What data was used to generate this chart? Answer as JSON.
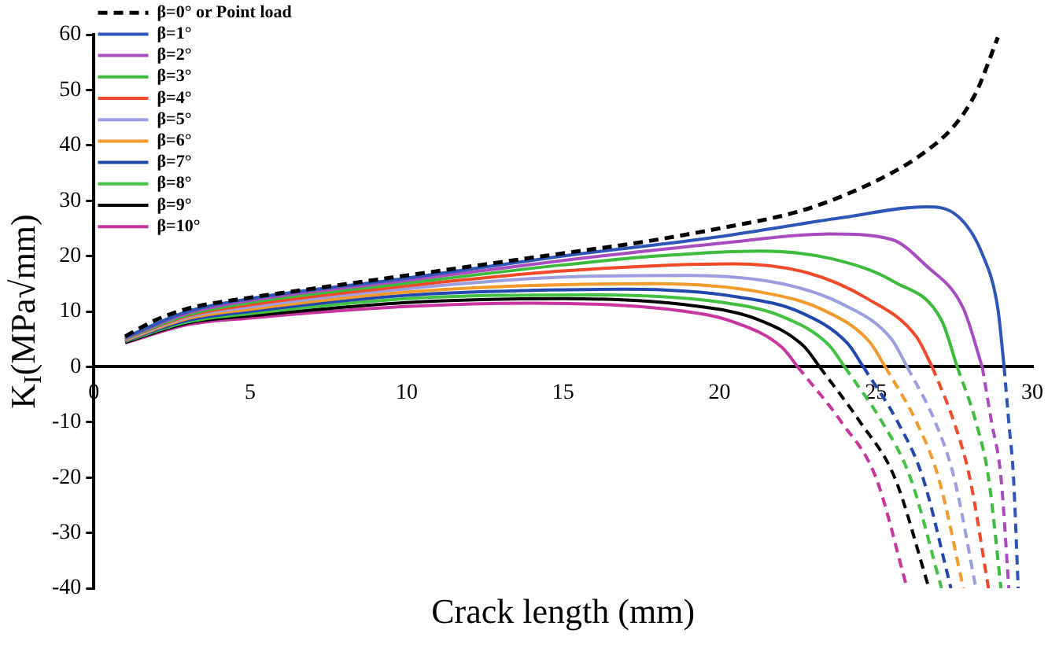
{
  "chart_data": {
    "type": "line",
    "xlabel": "Crack length (mm)",
    "ylabel": "K$_{I}$(MPa√mm)",
    "xlim": [
      0,
      30
    ],
    "xticks": [
      0,
      5,
      10,
      15,
      20,
      25,
      30
    ],
    "ylim": [
      -40,
      60
    ],
    "yticks": [
      -40,
      -30,
      -20,
      -10,
      0,
      10,
      20,
      30,
      40,
      50,
      60
    ],
    "grid": false,
    "legend": "top left",
    "marker": "none",
    "series": [
      {
        "name": "β=0° or Point load",
        "color": "#000000",
        "line_style": "dashed",
        "x": [
          1,
          2,
          3,
          5,
          7.5,
          10,
          12.5,
          15,
          17.5,
          20,
          22.5,
          24,
          25.5,
          26.5,
          27.5,
          28.2,
          28.9
        ],
        "values": [
          5.5,
          8.5,
          10.5,
          12.5,
          14.5,
          16.5,
          18.5,
          20.5,
          22.5,
          25,
          28,
          31,
          35,
          38.5,
          43.5,
          49.5,
          59.5
        ]
      },
      {
        "name": "β=1°",
        "color": "#2e55b8",
        "line_style": "solid",
        "x": [
          1,
          3,
          5,
          10,
          15,
          20,
          24,
          26.6,
          27.6,
          28.4,
          28.9,
          29.1
        ],
        "values": [
          5.3,
          10,
          12.3,
          16,
          20,
          23.5,
          27,
          28.9,
          27.3,
          20.4,
          10.5,
          0
        ]
      },
      {
        "name": "β=2°",
        "color": "#a84cc0",
        "line_style": "solid",
        "x": [
          1,
          3,
          5,
          10,
          15,
          20,
          23.5,
          25.5,
          26.6,
          27.8,
          28.4
        ],
        "values": [
          5.2,
          9.7,
          12,
          15.6,
          19.2,
          22.3,
          24,
          23,
          18.3,
          10.5,
          0
        ]
      },
      {
        "name": "β=3°",
        "color": "#3dbb3d",
        "line_style": "solid",
        "x": [
          1,
          3,
          5,
          10,
          15,
          18,
          21.3,
          23.6,
          25.6,
          27.1,
          27.6
        ],
        "values": [
          5.1,
          9.4,
          11.6,
          15.1,
          18.4,
          20,
          20.9,
          19.5,
          15.3,
          8.4,
          0
        ]
      },
      {
        "name": "β=4°",
        "color": "#f04a2a",
        "line_style": "solid",
        "x": [
          1,
          3,
          5,
          10,
          15,
          20.4,
          22.8,
          24.7,
          26.3,
          26.8
        ],
        "values": [
          5,
          9.2,
          11.2,
          14.6,
          17.3,
          18.6,
          17,
          12.4,
          5.4,
          0
        ]
      },
      {
        "name": "β=5°",
        "color": "#9c9ee0",
        "line_style": "solid",
        "x": [
          1,
          3,
          5,
          10,
          15,
          19,
          22,
          23.9,
          25.5,
          26
        ],
        "values": [
          4.9,
          9,
          10.8,
          14.1,
          16.2,
          16.5,
          15,
          11.4,
          5,
          0
        ]
      },
      {
        "name": "β=6°",
        "color": "#f39a2c",
        "line_style": "solid",
        "x": [
          1,
          3,
          5,
          10,
          14,
          18,
          21.3,
          23.3,
          24.8,
          25.3
        ],
        "values": [
          4.8,
          8.7,
          10.4,
          13.5,
          14.7,
          15,
          13.5,
          10.3,
          4.5,
          0
        ]
      },
      {
        "name": "β=7°",
        "color": "#2248b0",
        "line_style": "solid",
        "x": [
          1,
          3,
          5,
          10,
          14,
          17,
          20.6,
          22.6,
          24.1,
          24.6
        ],
        "values": [
          4.7,
          8.4,
          10,
          12.9,
          13.8,
          14,
          12.6,
          9.8,
          4.2,
          0
        ]
      },
      {
        "name": "β=8°",
        "color": "#42c142",
        "line_style": "solid",
        "x": [
          1,
          3,
          5,
          10,
          13,
          16,
          20,
          22,
          23.5,
          24
        ],
        "values": [
          4.6,
          8.1,
          9.6,
          12.3,
          12.9,
          13,
          11.7,
          9.1,
          3.9,
          0
        ]
      },
      {
        "name": "β=9°",
        "color": "#000000",
        "line_style": "solid",
        "x": [
          1,
          3,
          5,
          10,
          15,
          19.2,
          21.2,
          22.7,
          23.2
        ],
        "values": [
          4.4,
          7.9,
          9.2,
          11.6,
          12.3,
          11,
          8.6,
          3.7,
          0
        ]
      },
      {
        "name": "β=10°",
        "color": "#c8359e",
        "line_style": "solid",
        "x": [
          1,
          3,
          5,
          10,
          14,
          18.5,
          20.5,
          22,
          22.5
        ],
        "values": [
          4.3,
          7.6,
          8.8,
          10.9,
          11.5,
          10.3,
          8,
          3.5,
          0
        ]
      },
      {
        "color": "#2e55b8",
        "line_style": "dashed",
        "x": [
          29.1,
          29.25,
          29.4,
          29.55
        ],
        "values": [
          0,
          -10,
          -20,
          -40
        ]
      },
      {
        "color": "#a84cc0",
        "line_style": "dashed",
        "x": [
          28.4,
          28.7,
          29,
          29.25
        ],
        "values": [
          0,
          -10,
          -20,
          -40
        ]
      },
      {
        "color": "#3dbb3d",
        "line_style": "dashed",
        "x": [
          27.6,
          28.2,
          28.6,
          29
        ],
        "values": [
          0,
          -10,
          -20,
          -40
        ]
      },
      {
        "color": "#f04a2a",
        "line_style": "dashed",
        "x": [
          26.8,
          27.5,
          28,
          28.6
        ],
        "values": [
          0,
          -10,
          -20,
          -40
        ]
      },
      {
        "color": "#9c9ee0",
        "line_style": "dashed",
        "x": [
          26,
          26.9,
          27.5,
          28.2
        ],
        "values": [
          0,
          -10,
          -20,
          -40
        ]
      },
      {
        "color": "#f39a2c",
        "line_style": "dashed",
        "x": [
          25.3,
          26.3,
          27,
          27.8
        ],
        "values": [
          0,
          -10,
          -20,
          -40
        ]
      },
      {
        "color": "#2248b0",
        "line_style": "dashed",
        "x": [
          24.6,
          25.7,
          26.5,
          27.4
        ],
        "values": [
          0,
          -10,
          -20,
          -40
        ]
      },
      {
        "color": "#42c142",
        "line_style": "dashed",
        "x": [
          24,
          25.2,
          26.1,
          27.1
        ],
        "values": [
          0,
          -10,
          -20,
          -40
        ]
      },
      {
        "color": "#000000",
        "line_style": "dashed",
        "x": [
          23.2,
          24.5,
          25.6,
          26.7
        ],
        "values": [
          0,
          -10,
          -20,
          -40
        ]
      },
      {
        "color": "#c8359e",
        "line_style": "dashed",
        "x": [
          22.5,
          23.9,
          25,
          26
        ],
        "values": [
          0,
          -10,
          -20,
          -40
        ]
      }
    ]
  }
}
